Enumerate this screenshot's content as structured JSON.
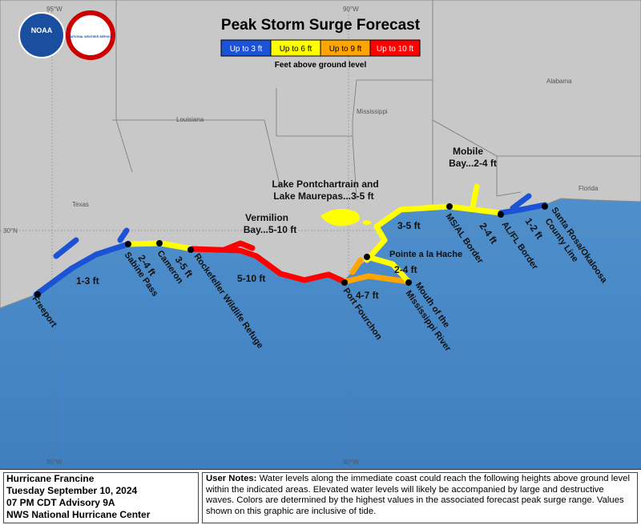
{
  "title": "Peak Storm Surge Forecast",
  "logos": {
    "noaa": "NOAA",
    "nws": "NATIONAL WEATHER SERVICE"
  },
  "legend": {
    "items": [
      {
        "label": "Up to 3 ft",
        "color": "#1c52d6"
      },
      {
        "label": "Up to 6 ft",
        "color": "#ffff00"
      },
      {
        "label": "Up to 9 ft",
        "color": "#ffa500"
      },
      {
        "label": "Up to 10 ft",
        "color": "#ff0000"
      }
    ],
    "caption": "Feet above ground level"
  },
  "graticule": {
    "lon_west": "95°W",
    "lon_center": "90°W",
    "lat": "30°N"
  },
  "states": [
    "Louisiana",
    "Mississippi",
    "Alabama",
    "Texas",
    "Florida"
  ],
  "areas": [
    {
      "name": "Vermilion",
      "surge": "Bay...5-10 ft"
    },
    {
      "name": "Lake Pontchartrain and",
      "surge": "Lake Maurepas...3-5 ft"
    },
    {
      "name": "Mobile",
      "surge": "Bay...2-4 ft"
    }
  ],
  "locations": [
    "Freeport",
    "Sabine Pass",
    "Cameron",
    "Rockefeller Wildlife Refuge",
    "Port Fourchon",
    "Mouth of the",
    "Mississippi River",
    "Pointe a la Hache",
    "MS/AL Border",
    "AL/FL Border",
    "Santa Rosa/Okaloosa",
    "County Line"
  ],
  "segments": [
    "1-3 ft",
    "2-4 ft",
    "3-5 ft",
    "5-10 ft",
    "4-7 ft",
    "2-4 ft",
    "3-5 ft",
    "2-4 ft",
    "1-2 ft"
  ],
  "footer": {
    "storm": "Hurricane Francine",
    "date": "Tuesday September 10, 2024",
    "advisory": "07 PM CDT Advisory 9A",
    "center": "NWS National Hurricane Center"
  },
  "notes": {
    "heading": "User Notes:",
    "text": "Water levels along the immediate coast could reach the following heights above ground level within the indicated areas. Elevated water levels will likely be accompanied by large and destructive waves. Colors are determined by the highest values in the associated forecast peak surge range. Values shown on this graphic are inclusive of tide."
  }
}
